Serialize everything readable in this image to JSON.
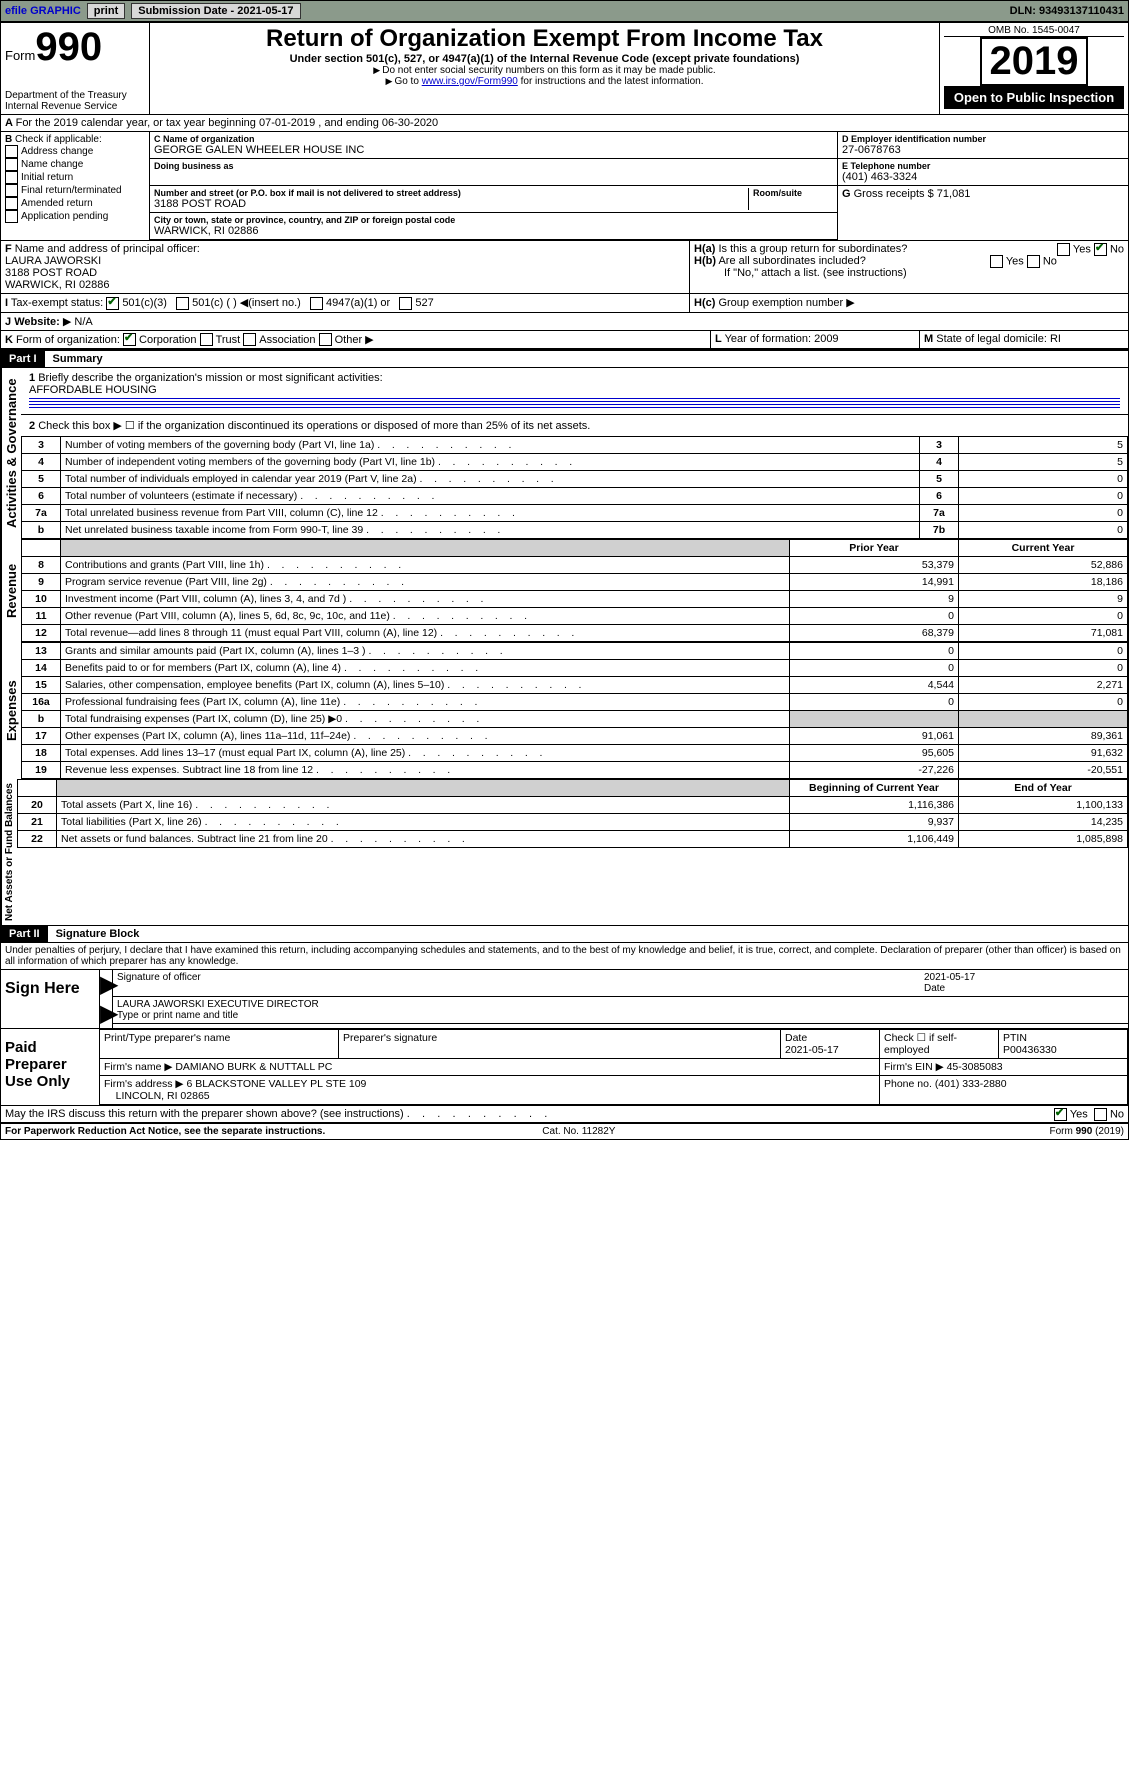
{
  "topbar": {
    "efile": "efile GRAPHIC",
    "print": "print",
    "submission_label": "Submission Date - 2021-05-17",
    "dln": "DLN: 93493137110431"
  },
  "header": {
    "form_prefix": "Form",
    "form_number": "990",
    "dept": "Department of the Treasury",
    "irs": "Internal Revenue Service",
    "title": "Return of Organization Exempt From Income Tax",
    "sub": "Under section 501(c), 527, or 4947(a)(1) of the Internal Revenue Code (except private foundations)",
    "note1": "Do not enter social security numbers on this form as it may be made public.",
    "note2_prefix": "Go to ",
    "note2_link": "www.irs.gov/Form990",
    "note2_suffix": " for instructions and the latest information.",
    "omb": "OMB No. 1545-0047",
    "year": "2019",
    "open": "Open to Public Inspection"
  },
  "periodA": "For the 2019 calendar year, or tax year beginning 07-01-2019   , and ending 06-30-2020",
  "boxB": {
    "label": "Check if applicable:",
    "items": [
      "Address change",
      "Name change",
      "Initial return",
      "Final return/terminated",
      "Amended return",
      "Application pending"
    ]
  },
  "boxC": {
    "name_label": "Name of organization",
    "name": "GEORGE GALEN WHEELER HOUSE INC",
    "dba_label": "Doing business as",
    "addr_label": "Number and street (or P.O. box if mail is not delivered to street address)",
    "room_label": "Room/suite",
    "street": "3188 POST ROAD",
    "city_label": "City or town, state or province, country, and ZIP or foreign postal code",
    "city": "WARWICK, RI  02886"
  },
  "boxD": {
    "label": "Employer identification number",
    "value": "27-0678763"
  },
  "boxE": {
    "label": "Telephone number",
    "value": "(401) 463-3324"
  },
  "boxG": {
    "label": "Gross receipts $",
    "value": "71,081"
  },
  "boxF": {
    "label": "Name and address of principal officer:",
    "name": "LAURA JAWORSKI",
    "street": "3188 POST ROAD",
    "city": "WARWICK, RI  02886"
  },
  "boxH": {
    "a": "Is this a group return for subordinates?",
    "b": "Are all subordinates included?",
    "bnote": "If \"No,\" attach a list. (see instructions)",
    "c": "Group exemption number",
    "yes": "Yes",
    "no": "No"
  },
  "boxI": {
    "label": "Tax-exempt status:",
    "opts": [
      "501(c)(3)",
      "501(c) (  )",
      "(insert no.)",
      "4947(a)(1) or",
      "527"
    ]
  },
  "boxJ": {
    "label": "Website:",
    "value": "N/A"
  },
  "boxK": {
    "label": "Form of organization:",
    "opts": [
      "Corporation",
      "Trust",
      "Association",
      "Other"
    ]
  },
  "boxL": {
    "label": "Year of formation:",
    "value": "2009"
  },
  "boxM": {
    "label": "State of legal domicile:",
    "value": "RI"
  },
  "part1": {
    "hdr": "Part I",
    "title": "Summary",
    "line1_label": "Briefly describe the organization's mission or most significant activities:",
    "line1_value": "AFFORDABLE HOUSING",
    "line2": "Check this box ▶ ☐  if the organization discontinued its operations or disposed of more than 25% of its net assets.",
    "rows_top": [
      {
        "n": "3",
        "desc": "Number of voting members of the governing body (Part VI, line 1a)",
        "box": "3",
        "val": "5"
      },
      {
        "n": "4",
        "desc": "Number of independent voting members of the governing body (Part VI, line 1b)",
        "box": "4",
        "val": "5"
      },
      {
        "n": "5",
        "desc": "Total number of individuals employed in calendar year 2019 (Part V, line 2a)",
        "box": "5",
        "val": "0"
      },
      {
        "n": "6",
        "desc": "Total number of volunteers (estimate if necessary)",
        "box": "6",
        "val": "0"
      },
      {
        "n": "7a",
        "desc": "Total unrelated business revenue from Part VIII, column (C), line 12",
        "box": "7a",
        "val": "0"
      },
      {
        "n": "b",
        "desc": "Net unrelated business taxable income from Form 990-T, line 39",
        "box": "7b",
        "val": "0"
      }
    ],
    "col_prior": "Prior Year",
    "col_current": "Current Year",
    "revenue": [
      {
        "n": "8",
        "desc": "Contributions and grants (Part VIII, line 1h)",
        "p": "53,379",
        "c": "52,886"
      },
      {
        "n": "9",
        "desc": "Program service revenue (Part VIII, line 2g)",
        "p": "14,991",
        "c": "18,186"
      },
      {
        "n": "10",
        "desc": "Investment income (Part VIII, column (A), lines 3, 4, and 7d )",
        "p": "9",
        "c": "9"
      },
      {
        "n": "11",
        "desc": "Other revenue (Part VIII, column (A), lines 5, 6d, 8c, 9c, 10c, and 11e)",
        "p": "0",
        "c": "0"
      },
      {
        "n": "12",
        "desc": "Total revenue—add lines 8 through 11 (must equal Part VIII, column (A), line 12)",
        "p": "68,379",
        "c": "71,081"
      }
    ],
    "expenses": [
      {
        "n": "13",
        "desc": "Grants and similar amounts paid (Part IX, column (A), lines 1–3 )",
        "p": "0",
        "c": "0"
      },
      {
        "n": "14",
        "desc": "Benefits paid to or for members (Part IX, column (A), line 4)",
        "p": "0",
        "c": "0"
      },
      {
        "n": "15",
        "desc": "Salaries, other compensation, employee benefits (Part IX, column (A), lines 5–10)",
        "p": "4,544",
        "c": "2,271"
      },
      {
        "n": "16a",
        "desc": "Professional fundraising fees (Part IX, column (A), line 11e)",
        "p": "0",
        "c": "0"
      },
      {
        "n": "b",
        "desc": "Total fundraising expenses (Part IX, column (D), line 25) ▶0",
        "p": "",
        "c": "",
        "shaded": true
      },
      {
        "n": "17",
        "desc": "Other expenses (Part IX, column (A), lines 11a–11d, 11f–24e)",
        "p": "91,061",
        "c": "89,361"
      },
      {
        "n": "18",
        "desc": "Total expenses. Add lines 13–17 (must equal Part IX, column (A), line 25)",
        "p": "95,605",
        "c": "91,632"
      },
      {
        "n": "19",
        "desc": "Revenue less expenses. Subtract line 18 from line 12",
        "p": "-27,226",
        "c": "-20,551"
      }
    ],
    "col_begin": "Beginning of Current Year",
    "col_end": "End of Year",
    "netassets": [
      {
        "n": "20",
        "desc": "Total assets (Part X, line 16)",
        "p": "1,116,386",
        "c": "1,100,133"
      },
      {
        "n": "21",
        "desc": "Total liabilities (Part X, line 26)",
        "p": "9,937",
        "c": "14,235"
      },
      {
        "n": "22",
        "desc": "Net assets or fund balances. Subtract line 21 from line 20",
        "p": "1,106,449",
        "c": "1,085,898"
      }
    ],
    "vlabels": {
      "gov": "Activities & Governance",
      "rev": "Revenue",
      "exp": "Expenses",
      "net": "Net Assets or Fund Balances"
    }
  },
  "part2": {
    "hdr": "Part II",
    "title": "Signature Block",
    "perjury": "Under penalties of perjury, I declare that I have examined this return, including accompanying schedules and statements, and to the best of my knowledge and belief, it is true, correct, and complete. Declaration of preparer (other than officer) is based on all information of which preparer has any knowledge.",
    "sign_here": "Sign Here",
    "sig_officer": "Signature of officer",
    "date_label": "Date",
    "date": "2021-05-17",
    "officer_name": "LAURA JAWORSKI  EXECUTIVE DIRECTOR",
    "type_name": "Type or print name and title",
    "paid": "Paid Preparer Use Only",
    "prep_name_label": "Print/Type preparer's name",
    "prep_sig_label": "Preparer's signature",
    "prep_date": "2021-05-17",
    "check_se": "Check ☐ if self-employed",
    "ptin_label": "PTIN",
    "ptin": "P00436330",
    "firm_name_label": "Firm's name   ▶",
    "firm_name": "DAMIANO BURK & NUTTALL PC",
    "firm_ein_label": "Firm's EIN ▶",
    "firm_ein": "45-3085083",
    "firm_addr_label": "Firm's address ▶",
    "firm_addr": "6 BLACKSTONE VALLEY PL STE 109",
    "firm_city": "LINCOLN, RI  02865",
    "phone_label": "Phone no.",
    "phone": "(401) 333-2880",
    "discuss": "May the IRS discuss this return with the preparer shown above? (see instructions)"
  },
  "footer": {
    "pra": "For Paperwork Reduction Act Notice, see the separate instructions.",
    "cat": "Cat. No. 11282Y",
    "form": "Form 990 (2019)"
  }
}
